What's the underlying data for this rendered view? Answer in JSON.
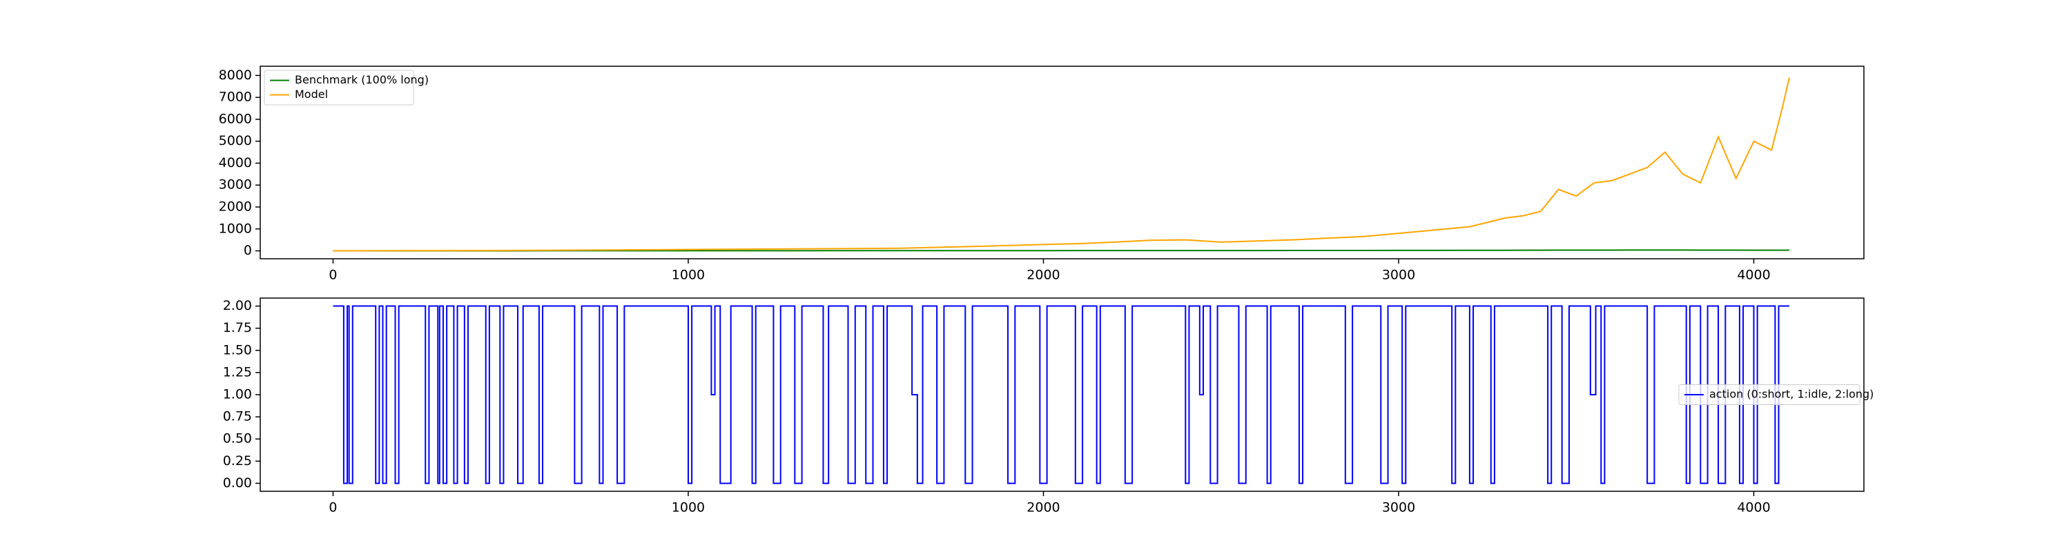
{
  "chart_data": [
    {
      "type": "line",
      "x": [
        0,
        200,
        400,
        600,
        800,
        1000,
        1200,
        1400,
        1600,
        1800,
        2000,
        2100,
        2200,
        2300,
        2400,
        2500,
        2600,
        2700,
        2800,
        2900,
        3000,
        3100,
        3200,
        3300,
        3350,
        3400,
        3450,
        3500,
        3550,
        3600,
        3650,
        3700,
        3750,
        3800,
        3850,
        3900,
        3950,
        4000,
        4050,
        4080,
        4100
      ],
      "series": [
        {
          "name": "Benchmark (100% long)",
          "color": "#008000",
          "values": [
            1,
            2,
            3,
            4,
            5,
            6,
            7,
            8,
            9,
            10,
            11,
            12,
            12,
            13,
            14,
            14,
            15,
            16,
            17,
            18,
            20,
            22,
            24,
            26,
            28,
            30,
            32,
            33,
            34,
            35,
            36,
            37,
            38,
            36,
            34,
            33,
            32,
            30,
            30,
            31,
            32
          ]
        },
        {
          "name": "Model",
          "color": "#ffa500",
          "values": [
            1,
            8,
            15,
            25,
            40,
            60,
            80,
            100,
            120,
            200,
            290,
            330,
            400,
            480,
            500,
            400,
            450,
            500,
            580,
            650,
            800,
            950,
            1100,
            1500,
            1600,
            1800,
            2800,
            2500,
            3100,
            3200,
            3500,
            3800,
            4500,
            3500,
            3100,
            5200,
            3300,
            5000,
            4600,
            6500,
            7900
          ]
        }
      ],
      "xlim": [
        -205,
        4310
      ],
      "ylim": [
        -360,
        8420
      ],
      "xticks": [
        0,
        1000,
        2000,
        3000,
        4000
      ],
      "yticks": [
        0,
        1000,
        2000,
        3000,
        4000,
        5000,
        6000,
        7000,
        8000
      ],
      "legend": "upper left"
    },
    {
      "type": "step",
      "x": [
        0,
        30,
        40,
        45,
        55,
        120,
        130,
        140,
        150,
        175,
        185,
        260,
        270,
        295,
        300,
        310,
        320,
        340,
        350,
        370,
        380,
        430,
        440,
        470,
        480,
        520,
        535,
        580,
        590,
        680,
        700,
        750,
        760,
        800,
        820,
        1000,
        1010,
        1065,
        1075,
        1090,
        1120,
        1180,
        1190,
        1240,
        1260,
        1300,
        1320,
        1380,
        1395,
        1450,
        1470,
        1500,
        1520,
        1550,
        1560,
        1630,
        1645,
        1660,
        1700,
        1720,
        1780,
        1800,
        1900,
        1920,
        1990,
        2010,
        2090,
        2110,
        2150,
        2160,
        2230,
        2250,
        2400,
        2410,
        2440,
        2450,
        2470,
        2490,
        2550,
        2570,
        2630,
        2640,
        2720,
        2730,
        2850,
        2870,
        2950,
        2970,
        3010,
        3020,
        3150,
        3160,
        3200,
        3210,
        3260,
        3270,
        3420,
        3430,
        3460,
        3480,
        3540,
        3555,
        3570,
        3580,
        3700,
        3720,
        3810,
        3820,
        3850,
        3870,
        3900,
        3920,
        3960,
        3970,
        4000,
        4010,
        4060,
        4070,
        4100
      ],
      "series": [
        {
          "name": "action (0:short, 1:idle, 2:long)",
          "color": "#0000ff",
          "values": [
            2,
            0,
            2,
            0,
            2,
            0,
            2,
            0,
            2,
            0,
            2,
            0,
            2,
            0,
            2,
            0,
            2,
            0,
            2,
            0,
            2,
            0,
            2,
            0,
            2,
            0,
            2,
            0,
            2,
            0,
            2,
            0,
            2,
            0,
            2,
            0,
            2,
            1,
            2,
            0,
            2,
            0,
            2,
            0,
            2,
            0,
            2,
            0,
            2,
            0,
            2,
            0,
            2,
            0,
            2,
            1,
            0,
            2,
            0,
            2,
            0,
            2,
            0,
            2,
            0,
            2,
            0,
            2,
            0,
            2,
            0,
            2,
            0,
            2,
            1,
            2,
            0,
            2,
            0,
            2,
            0,
            2,
            0,
            2,
            0,
            2,
            0,
            2,
            0,
            2,
            0,
            2,
            0,
            2,
            0,
            2,
            0,
            2,
            0,
            2,
            1,
            2,
            0,
            2,
            0,
            2,
            0,
            2,
            0,
            2,
            0,
            2,
            0,
            2,
            0,
            2,
            0,
            2,
            2
          ]
        }
      ],
      "xlim": [
        -205,
        4310
      ],
      "ylim": [
        -0.09,
        2.09
      ],
      "xticks": [
        0,
        1000,
        2000,
        3000,
        4000
      ],
      "yticks": [
        {
          "value": 0,
          "label": "0.00"
        },
        {
          "value": 0.25,
          "label": "0.25"
        },
        {
          "value": 0.5,
          "label": "0.50"
        },
        {
          "value": 0.75,
          "label": "0.75"
        },
        {
          "value": 1,
          "label": "1.00"
        },
        {
          "value": 1.25,
          "label": "1.25"
        },
        {
          "value": 1.5,
          "label": "1.50"
        },
        {
          "value": 1.75,
          "label": "1.75"
        },
        {
          "value": 2,
          "label": "2.00"
        }
      ],
      "legend": "center right"
    }
  ]
}
